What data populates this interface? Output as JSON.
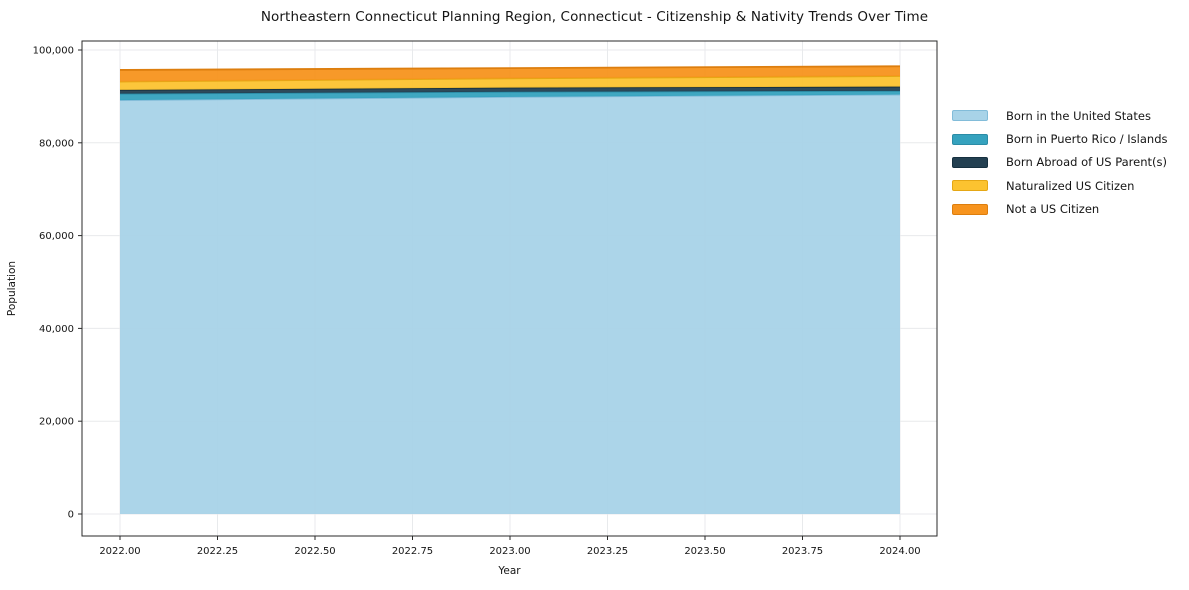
{
  "title": "Northeastern Connecticut Planning Region, Connecticut - Citizenship & Nativity Trends Over Time",
  "chart_data": {
    "type": "area",
    "stacked": true,
    "title": "Northeastern Connecticut Planning Region, Connecticut - Citizenship & Nativity Trends Over Time",
    "xlabel": "Year",
    "ylabel": "Population",
    "x": [
      2022,
      2023,
      2024
    ],
    "series": [
      {
        "name": "Born in the United States",
        "color": "#A8D3E8",
        "edge_color": "#82BCD9",
        "values": [
          89200,
          89900,
          90400
        ]
      },
      {
        "name": "Born in Puerto Rico / Islands",
        "color": "#35A2BE",
        "edge_color": "#2B8CA6",
        "values": [
          1400,
          1100,
          800
        ]
      },
      {
        "name": "Born Abroad of US Parent(s)",
        "color": "#234051",
        "edge_color": "#16303F",
        "values": [
          800,
          900,
          900
        ]
      },
      {
        "name": "Naturalized US Citizen",
        "color": "#FCC330",
        "edge_color": "#E5A715",
        "values": [
          1800,
          2000,
          2300
        ]
      },
      {
        "name": "Not a US Citizen",
        "color": "#F7941E",
        "edge_color": "#DD7E0E",
        "values": [
          2500,
          2200,
          2100
        ]
      }
    ],
    "totals": [
      95700,
      96100,
      96500
    ],
    "x_ticks": [
      "2022.00",
      "2022.25",
      "2022.50",
      "2022.75",
      "2023.00",
      "2023.25",
      "2023.50",
      "2023.75",
      "2024.00"
    ],
    "x_tick_values": [
      2022.0,
      2022.25,
      2022.5,
      2022.75,
      2023.0,
      2023.25,
      2023.5,
      2023.75,
      2024.0
    ],
    "y_ticks": [
      "0",
      "20,000",
      "40,000",
      "60,000",
      "80,000",
      "100,000"
    ],
    "y_tick_values": [
      0,
      20000,
      40000,
      60000,
      80000,
      100000
    ],
    "xlim": [
      2021.9,
      2024.09
    ],
    "ylim": [
      -5000,
      102000
    ],
    "grid": true,
    "grid_color": "#e8eaec",
    "spine_color": "#2a2a2a",
    "text_color": "#151515",
    "legend_position": "right"
  }
}
